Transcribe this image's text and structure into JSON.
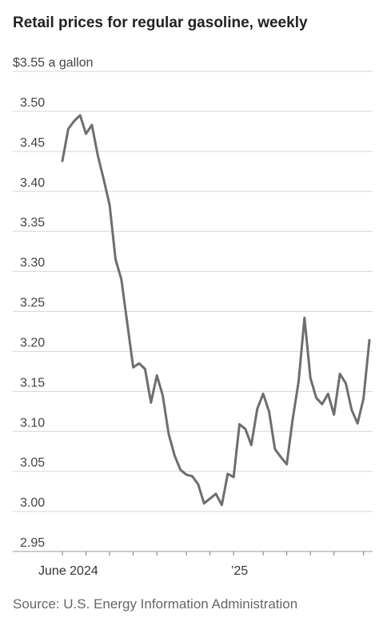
{
  "title": "Retail prices for regular gasoline, weekly",
  "source": "Source: U.S. Energy Information Administration",
  "chart_data": {
    "type": "line",
    "title": "Retail prices for regular gasoline, weekly",
    "ylabel": "$3.55 a gallon",
    "ylim": [
      2.95,
      3.55
    ],
    "yticks": [
      2.95,
      3.0,
      3.05,
      3.1,
      3.15,
      3.2,
      3.25,
      3.3,
      3.35,
      3.4,
      3.45,
      3.5
    ],
    "ytick_labels": [
      "2.95",
      "3.00",
      "3.05",
      "3.10",
      "3.15",
      "3.20",
      "3.25",
      "3.30",
      "3.35",
      "3.40",
      "3.45",
      "3.50"
    ],
    "top_label": "$3.55 a gallon",
    "xtick_labels": [
      {
        "index": 1,
        "label": "June 2024"
      },
      {
        "index": 30,
        "label": "’25"
      }
    ],
    "month_tick_indices": [
      0,
      4,
      8,
      12,
      16,
      21,
      25,
      29,
      34,
      38,
      42,
      46,
      51
    ],
    "grid": true,
    "line_color": "#6e6e6e",
    "series": [
      {
        "values": [
          3.438,
          3.478,
          3.488,
          3.495,
          3.472,
          3.483,
          3.445,
          3.415,
          3.383,
          3.315,
          3.29,
          3.235,
          3.18,
          3.185,
          3.178,
          3.136,
          3.17,
          3.145,
          3.097,
          3.07,
          3.052,
          3.046,
          3.044,
          3.034,
          3.01,
          3.016,
          3.022,
          3.008,
          3.047,
          3.043,
          3.109,
          3.103,
          3.083,
          3.128,
          3.147,
          3.125,
          3.078,
          3.068,
          3.059,
          3.115,
          3.162,
          3.242,
          3.167,
          3.142,
          3.134,
          3.147,
          3.121,
          3.172,
          3.16,
          3.127,
          3.11,
          3.141,
          3.214
        ]
      }
    ]
  }
}
